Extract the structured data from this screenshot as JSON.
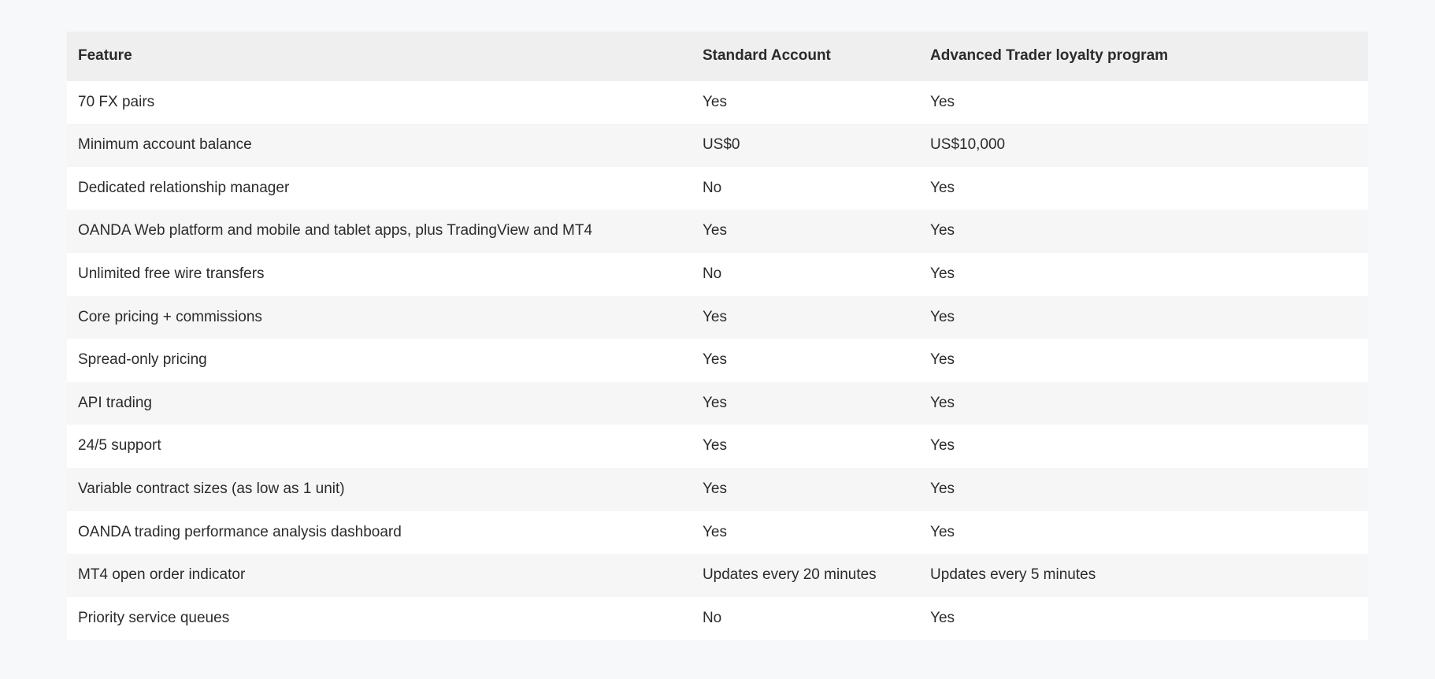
{
  "table": {
    "type": "table",
    "background_color": "#f7f8f9",
    "header_bg_color": "#efefef",
    "row_bg_colors": [
      "#ffffff",
      "#f6f6f6"
    ],
    "text_color": "#2b2b2b",
    "header_font_weight": 700,
    "body_font_weight": 400,
    "font_size_pt": 14,
    "columns": [
      {
        "key": "feature",
        "label": "Feature",
        "width_pct": 48,
        "align": "left"
      },
      {
        "key": "standard",
        "label": "Standard Account",
        "width_pct": 17.5,
        "align": "left"
      },
      {
        "key": "advanced",
        "label": "Advanced Trader loyalty program",
        "width_pct": 34.5,
        "align": "left"
      }
    ],
    "rows": [
      {
        "feature": "70 FX pairs",
        "standard": "Yes",
        "advanced": "Yes"
      },
      {
        "feature": "Minimum account balance",
        "standard": "US$0",
        "advanced": "US$10,000"
      },
      {
        "feature": "Dedicated relationship manager",
        "standard": "No",
        "advanced": "Yes"
      },
      {
        "feature": "OANDA Web platform and mobile and tablet apps, plus TradingView and MT4",
        "standard": "Yes",
        "advanced": "Yes"
      },
      {
        "feature": "Unlimited free wire transfers",
        "standard": "No",
        "advanced": "Yes"
      },
      {
        "feature": "Core pricing + commissions",
        "standard": "Yes",
        "advanced": "Yes"
      },
      {
        "feature": "Spread-only pricing",
        "standard": "Yes",
        "advanced": "Yes"
      },
      {
        "feature": "API trading",
        "standard": "Yes",
        "advanced": "Yes"
      },
      {
        "feature": "24/5 support",
        "standard": "Yes",
        "advanced": "Yes"
      },
      {
        "feature": "Variable contract sizes (as low as 1 unit)",
        "standard": "Yes",
        "advanced": "Yes"
      },
      {
        "feature": "OANDA trading performance analysis dashboard",
        "standard": "Yes",
        "advanced": "Yes"
      },
      {
        "feature": "MT4 open order indicator",
        "standard": "Updates every 20 minutes",
        "advanced": "Updates every 5 minutes"
      },
      {
        "feature": "Priority service queues",
        "standard": "No",
        "advanced": "Yes"
      }
    ]
  }
}
